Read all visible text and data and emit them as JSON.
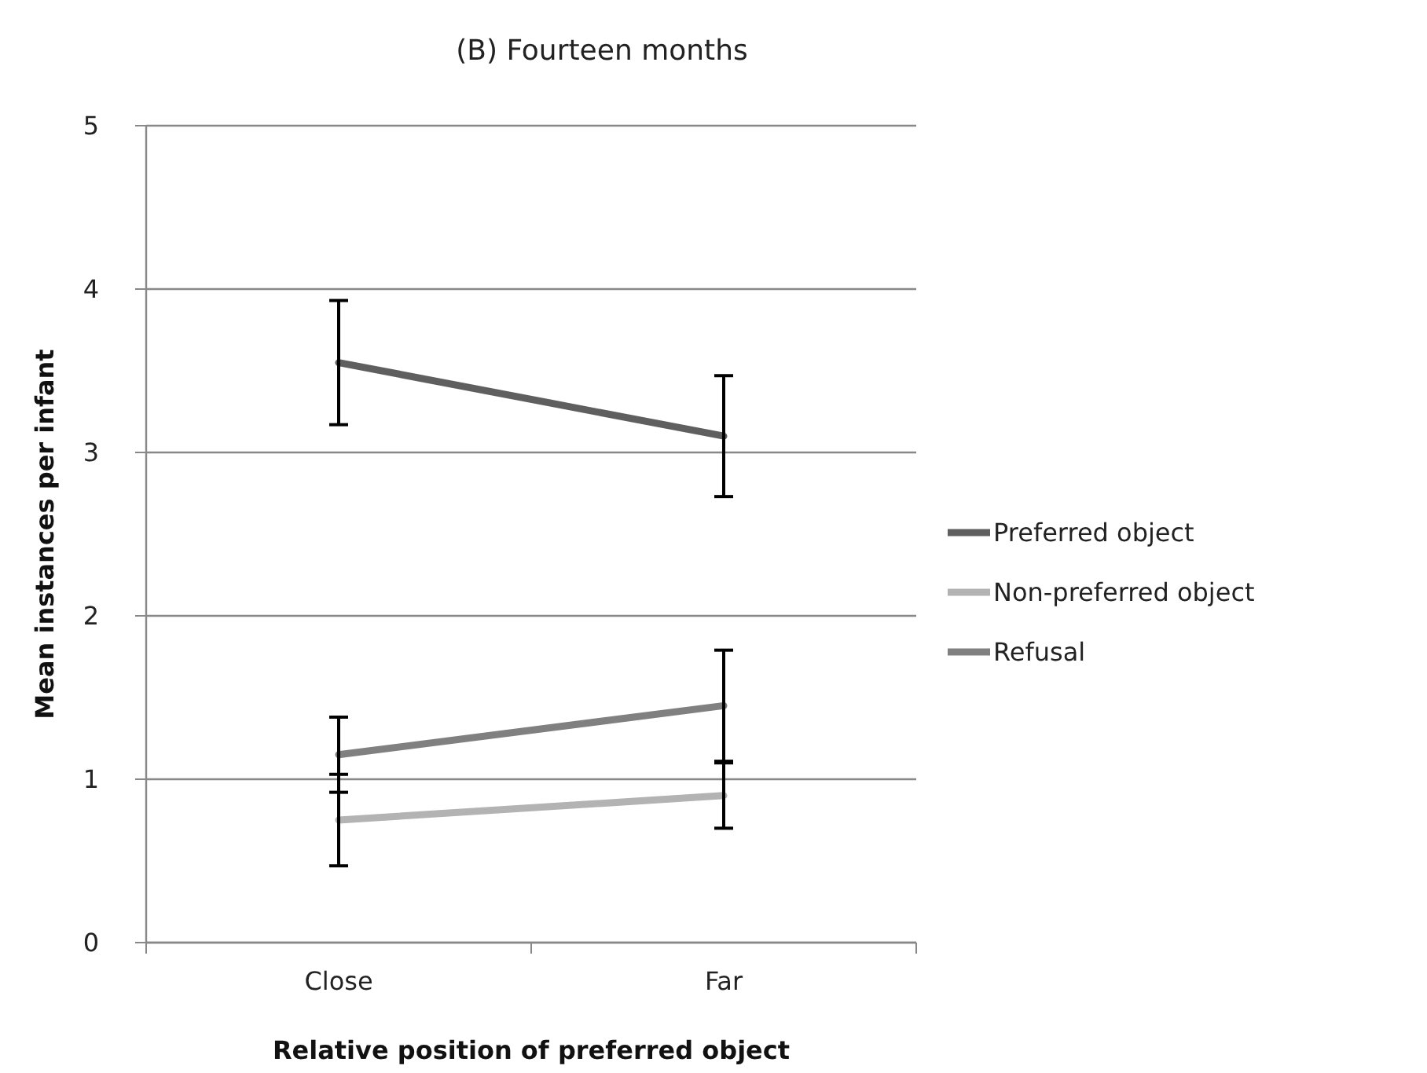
{
  "chart_data": {
    "type": "line",
    "title": "(B) Fourteen months",
    "xlabel": "Relative position of preferred object",
    "ylabel": "Mean instances per infant",
    "categories": [
      "Close",
      "Far"
    ],
    "series": [
      {
        "name": "Preferred object",
        "color": "#5f5f5f",
        "values": [
          3.55,
          3.1
        ],
        "errors": [
          0.38,
          0.37
        ]
      },
      {
        "name": "Non-preferred object",
        "color": "#b3b3b3",
        "values": [
          0.75,
          0.9
        ],
        "errors": [
          0.28,
          0.2
        ]
      },
      {
        "name": "Refusal",
        "color": "#808080",
        "values": [
          1.15,
          1.45
        ],
        "errors": [
          0.23,
          0.34
        ]
      }
    ],
    "ylim": [
      0,
      5
    ],
    "yticks": [
      0,
      1,
      2,
      3,
      4,
      5
    ],
    "grid": "y",
    "legend": "right",
    "marker": "none",
    "line_style": "solid"
  }
}
